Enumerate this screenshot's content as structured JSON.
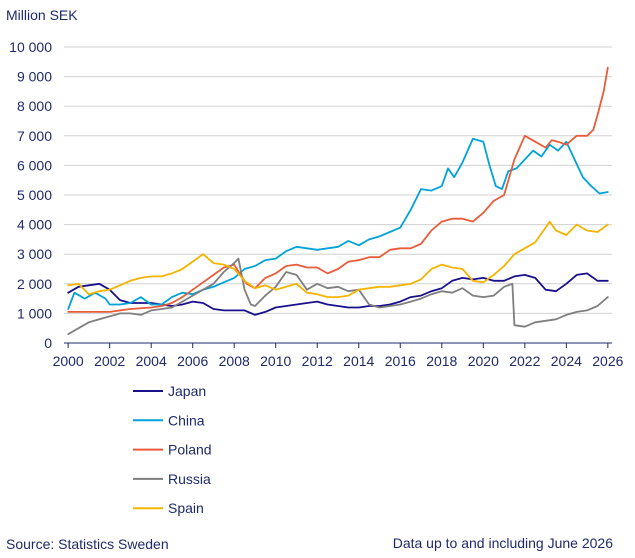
{
  "chart_data": {
    "type": "line",
    "ylabel": "Million SEK",
    "ylim": [
      0,
      10000
    ],
    "yticks": [
      0,
      1000,
      2000,
      3000,
      4000,
      5000,
      6000,
      7000,
      8000,
      9000,
      10000
    ],
    "ytick_labels": [
      "0",
      "1 000",
      "2 000",
      "3 000",
      "4 000",
      "5 000",
      "6 000",
      "7 000",
      "8 000",
      "9 000",
      "10 000"
    ],
    "xlim": [
      1999.8,
      2026.2
    ],
    "xticks": [
      2000,
      2002,
      2004,
      2006,
      2008,
      2010,
      2012,
      2014,
      2016,
      2018,
      2020,
      2022,
      2024,
      2026
    ],
    "xtick_labels": [
      "2000",
      "2002",
      "2004",
      "2006",
      "2008",
      "2010",
      "2012",
      "2014",
      "2016",
      "2018",
      "2020",
      "2022",
      "2024",
      "2026"
    ],
    "grid": "horizontal",
    "legend_position": "bottom-left",
    "series": [
      {
        "name": "Japan",
        "color": "#1a0f8c",
        "points": [
          [
            2000,
            1700
          ],
          [
            2000.5,
            1900
          ],
          [
            2001,
            1950
          ],
          [
            2001.5,
            2000
          ],
          [
            2002,
            1800
          ],
          [
            2002.5,
            1450
          ],
          [
            2003,
            1350
          ],
          [
            2004,
            1350
          ],
          [
            2005,
            1250
          ],
          [
            2005.5,
            1300
          ],
          [
            2006,
            1400
          ],
          [
            2006.5,
            1350
          ],
          [
            2007,
            1150
          ],
          [
            2007.5,
            1100
          ],
          [
            2008,
            1100
          ],
          [
            2008.5,
            1100
          ],
          [
            2009,
            950
          ],
          [
            2009.5,
            1050
          ],
          [
            2010,
            1200
          ],
          [
            2010.5,
            1250
          ],
          [
            2011,
            1300
          ],
          [
            2011.5,
            1350
          ],
          [
            2012,
            1400
          ],
          [
            2012.5,
            1300
          ],
          [
            2013,
            1250
          ],
          [
            2013.5,
            1200
          ],
          [
            2014,
            1200
          ],
          [
            2014.5,
            1250
          ],
          [
            2015,
            1250
          ],
          [
            2015.5,
            1300
          ],
          [
            2016,
            1400
          ],
          [
            2016.5,
            1550
          ],
          [
            2017,
            1600
          ],
          [
            2017.5,
            1750
          ],
          [
            2018,
            1850
          ],
          [
            2018.5,
            2100
          ],
          [
            2019,
            2200
          ],
          [
            2019.5,
            2150
          ],
          [
            2020,
            2200
          ],
          [
            2020.5,
            2100
          ],
          [
            2021,
            2100
          ],
          [
            2021.5,
            2250
          ],
          [
            2022,
            2300
          ],
          [
            2022.5,
            2200
          ],
          [
            2023,
            1800
          ],
          [
            2023.5,
            1750
          ],
          [
            2024,
            2000
          ],
          [
            2024.5,
            2300
          ],
          [
            2025,
            2350
          ],
          [
            2025.5,
            2100
          ],
          [
            2026,
            2100
          ]
        ]
      },
      {
        "name": "China",
        "color": "#00a3d9",
        "points": [
          [
            2000,
            1150
          ],
          [
            2000.3,
            1700
          ],
          [
            2000.8,
            1500
          ],
          [
            2001.3,
            1700
          ],
          [
            2001.8,
            1500
          ],
          [
            2002,
            1300
          ],
          [
            2002.5,
            1300
          ],
          [
            2003,
            1350
          ],
          [
            2003.5,
            1550
          ],
          [
            2004,
            1300
          ],
          [
            2004.5,
            1300
          ],
          [
            2005,
            1550
          ],
          [
            2005.5,
            1700
          ],
          [
            2006,
            1650
          ],
          [
            2006.5,
            1800
          ],
          [
            2007,
            1900
          ],
          [
            2007.5,
            2050
          ],
          [
            2008,
            2200
          ],
          [
            2008.5,
            2500
          ],
          [
            2009,
            2600
          ],
          [
            2009.5,
            2800
          ],
          [
            2010,
            2850
          ],
          [
            2010.5,
            3100
          ],
          [
            2011,
            3250
          ],
          [
            2011.5,
            3200
          ],
          [
            2012,
            3150
          ],
          [
            2012.5,
            3200
          ],
          [
            2013,
            3250
          ],
          [
            2013.5,
            3450
          ],
          [
            2014,
            3300
          ],
          [
            2014.5,
            3500
          ],
          [
            2015,
            3600
          ],
          [
            2015.5,
            3750
          ],
          [
            2016,
            3900
          ],
          [
            2016.5,
            4500
          ],
          [
            2017,
            5200
          ],
          [
            2017.5,
            5150
          ],
          [
            2018,
            5300
          ],
          [
            2018.3,
            5900
          ],
          [
            2018.6,
            5600
          ],
          [
            2019,
            6100
          ],
          [
            2019.5,
            6900
          ],
          [
            2020,
            6800
          ],
          [
            2020.3,
            6000
          ],
          [
            2020.6,
            5300
          ],
          [
            2020.9,
            5200
          ],
          [
            2021.2,
            5800
          ],
          [
            2021.6,
            5900
          ],
          [
            2022,
            6200
          ],
          [
            2022.4,
            6500
          ],
          [
            2022.8,
            6300
          ],
          [
            2023.2,
            6700
          ],
          [
            2023.6,
            6500
          ],
          [
            2024,
            6800
          ],
          [
            2024.4,
            6200
          ],
          [
            2024.8,
            5600
          ],
          [
            2025.2,
            5300
          ],
          [
            2025.6,
            5050
          ],
          [
            2026,
            5100
          ]
        ]
      },
      {
        "name": "Poland",
        "color": "#ea5b3a",
        "points": [
          [
            2000,
            1050
          ],
          [
            2001,
            1050
          ],
          [
            2002,
            1050
          ],
          [
            2003,
            1150
          ],
          [
            2004,
            1200
          ],
          [
            2004.5,
            1250
          ],
          [
            2005,
            1350
          ],
          [
            2005.5,
            1550
          ],
          [
            2006,
            1800
          ],
          [
            2006.5,
            2050
          ],
          [
            2007,
            2300
          ],
          [
            2007.5,
            2550
          ],
          [
            2008,
            2650
          ],
          [
            2008.3,
            2300
          ],
          [
            2008.6,
            2000
          ],
          [
            2009,
            1850
          ],
          [
            2009.5,
            2200
          ],
          [
            2010,
            2350
          ],
          [
            2010.5,
            2600
          ],
          [
            2011,
            2650
          ],
          [
            2011.5,
            2550
          ],
          [
            2012,
            2550
          ],
          [
            2012.5,
            2350
          ],
          [
            2013,
            2500
          ],
          [
            2013.5,
            2750
          ],
          [
            2014,
            2800
          ],
          [
            2014.5,
            2900
          ],
          [
            2015,
            2900
          ],
          [
            2015.5,
            3150
          ],
          [
            2016,
            3200
          ],
          [
            2016.5,
            3200
          ],
          [
            2017,
            3350
          ],
          [
            2017.5,
            3800
          ],
          [
            2018,
            4100
          ],
          [
            2018.5,
            4200
          ],
          [
            2019,
            4200
          ],
          [
            2019.5,
            4100
          ],
          [
            2020,
            4400
          ],
          [
            2020.5,
            4800
          ],
          [
            2021,
            5000
          ],
          [
            2021.5,
            6200
          ],
          [
            2022,
            7000
          ],
          [
            2022.5,
            6800
          ],
          [
            2023,
            6600
          ],
          [
            2023.3,
            6850
          ],
          [
            2023.6,
            6800
          ],
          [
            2024,
            6700
          ],
          [
            2024.5,
            7000
          ],
          [
            2025,
            7000
          ],
          [
            2025.3,
            7200
          ],
          [
            2025.5,
            7700
          ],
          [
            2025.8,
            8500
          ],
          [
            2026,
            9300
          ]
        ]
      },
      {
        "name": "Russia",
        "color": "#7f7f7f",
        "points": [
          [
            2000,
            300
          ],
          [
            2000.5,
            500
          ],
          [
            2001,
            700
          ],
          [
            2001.5,
            800
          ],
          [
            2002,
            900
          ],
          [
            2002.5,
            1000
          ],
          [
            2003,
            1000
          ],
          [
            2003.5,
            950
          ],
          [
            2004,
            1100
          ],
          [
            2004.5,
            1150
          ],
          [
            2005,
            1200
          ],
          [
            2005.5,
            1400
          ],
          [
            2006,
            1600
          ],
          [
            2006.5,
            1800
          ],
          [
            2007,
            2000
          ],
          [
            2007.5,
            2400
          ],
          [
            2008,
            2700
          ],
          [
            2008.2,
            2850
          ],
          [
            2008.5,
            1800
          ],
          [
            2008.8,
            1300
          ],
          [
            2009,
            1250
          ],
          [
            2009.5,
            1600
          ],
          [
            2010,
            1900
          ],
          [
            2010.5,
            2400
          ],
          [
            2011,
            2300
          ],
          [
            2011.5,
            1800
          ],
          [
            2012,
            2000
          ],
          [
            2012.5,
            1850
          ],
          [
            2013,
            1900
          ],
          [
            2013.5,
            1750
          ],
          [
            2014,
            1800
          ],
          [
            2014.5,
            1300
          ],
          [
            2015,
            1200
          ],
          [
            2015.5,
            1250
          ],
          [
            2016,
            1300
          ],
          [
            2016.5,
            1400
          ],
          [
            2017,
            1500
          ],
          [
            2017.5,
            1650
          ],
          [
            2018,
            1750
          ],
          [
            2018.5,
            1700
          ],
          [
            2019,
            1850
          ],
          [
            2019.5,
            1600
          ],
          [
            2020,
            1550
          ],
          [
            2020.5,
            1600
          ],
          [
            2021,
            1900
          ],
          [
            2021.4,
            2000
          ],
          [
            2021.5,
            600
          ],
          [
            2022,
            550
          ],
          [
            2022.5,
            700
          ],
          [
            2023,
            750
          ],
          [
            2023.5,
            800
          ],
          [
            2024,
            950
          ],
          [
            2024.5,
            1050
          ],
          [
            2025,
            1100
          ],
          [
            2025.5,
            1250
          ],
          [
            2026,
            1550
          ]
        ]
      },
      {
        "name": "Spain",
        "color": "#f5b400",
        "points": [
          [
            2000,
            1950
          ],
          [
            2000.5,
            2000
          ],
          [
            2001,
            1650
          ],
          [
            2001.5,
            1750
          ],
          [
            2002,
            1800
          ],
          [
            2002.5,
            1950
          ],
          [
            2003,
            2100
          ],
          [
            2003.5,
            2200
          ],
          [
            2004,
            2250
          ],
          [
            2004.5,
            2250
          ],
          [
            2005,
            2350
          ],
          [
            2005.5,
            2500
          ],
          [
            2006,
            2750
          ],
          [
            2006.5,
            3000
          ],
          [
            2007,
            2700
          ],
          [
            2007.5,
            2650
          ],
          [
            2008,
            2500
          ],
          [
            2008.5,
            2100
          ],
          [
            2009,
            1850
          ],
          [
            2009.5,
            1950
          ],
          [
            2010,
            1800
          ],
          [
            2010.5,
            1900
          ],
          [
            2011,
            2000
          ],
          [
            2011.5,
            1700
          ],
          [
            2012,
            1650
          ],
          [
            2012.5,
            1550
          ],
          [
            2013,
            1550
          ],
          [
            2013.5,
            1600
          ],
          [
            2014,
            1800
          ],
          [
            2014.5,
            1850
          ],
          [
            2015,
            1900
          ],
          [
            2015.5,
            1900
          ],
          [
            2016,
            1950
          ],
          [
            2016.5,
            2000
          ],
          [
            2017,
            2150
          ],
          [
            2017.5,
            2500
          ],
          [
            2018,
            2650
          ],
          [
            2018.5,
            2550
          ],
          [
            2019,
            2500
          ],
          [
            2019.5,
            2100
          ],
          [
            2020,
            2050
          ],
          [
            2020.5,
            2300
          ],
          [
            2021,
            2600
          ],
          [
            2021.5,
            3000
          ],
          [
            2022,
            3200
          ],
          [
            2022.5,
            3400
          ],
          [
            2023,
            3900
          ],
          [
            2023.2,
            4100
          ],
          [
            2023.5,
            3800
          ],
          [
            2024,
            3650
          ],
          [
            2024.5,
            4000
          ],
          [
            2025,
            3800
          ],
          [
            2025.5,
            3750
          ],
          [
            2026,
            4000
          ]
        ]
      }
    ]
  },
  "footer": {
    "source": "Source:  Statistics Sweden",
    "note": "Data up to and including  June 2026"
  }
}
